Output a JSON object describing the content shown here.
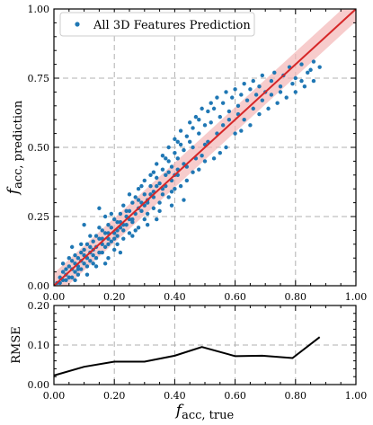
{
  "chart_data": [
    {
      "type": "scatter",
      "xlabel": "",
      "ylabel": "f_acc, prediction",
      "ylabel_main": "f",
      "ylabel_sub": "acc, prediction",
      "xlim": [
        0,
        1
      ],
      "ylim": [
        0,
        1
      ],
      "x_ticks": [
        "0.00",
        "0.20",
        "0.40",
        "0.60",
        "0.80",
        "1.00"
      ],
      "y_ticks": [
        "0.00",
        "0.25",
        "0.50",
        "0.75",
        "1.00"
      ],
      "grid": true,
      "legend": {
        "position": "top-left",
        "entries": [
          "All 3D Features Prediction"
        ]
      },
      "colors": {
        "points": "#1f77b4",
        "identity_line": "#d62728",
        "band": "#f4b6b6"
      },
      "identity_line": {
        "x": [
          0,
          1
        ],
        "y": [
          0,
          1
        ]
      },
      "band_halfwidth": 0.045,
      "series": [
        {
          "name": "All 3D Features Prediction",
          "points": [
            [
              0.01,
              0.01
            ],
            [
              0.02,
              0.03
            ],
            [
              0.03,
              0.02
            ],
            [
              0.03,
              0.05
            ],
            [
              0.04,
              0.04
            ],
            [
              0.05,
              0.07
            ],
            [
              0.05,
              0.03
            ],
            [
              0.06,
              0.06
            ],
            [
              0.06,
              0.09
            ],
            [
              0.07,
              0.05
            ],
            [
              0.07,
              0.08
            ],
            [
              0.08,
              0.1
            ],
            [
              0.08,
              0.06
            ],
            [
              0.09,
              0.12
            ],
            [
              0.09,
              0.09
            ],
            [
              0.1,
              0.08
            ],
            [
              0.1,
              0.13
            ],
            [
              0.11,
              0.1
            ],
            [
              0.11,
              0.15
            ],
            [
              0.12,
              0.12
            ],
            [
              0.12,
              0.09
            ],
            [
              0.13,
              0.16
            ],
            [
              0.13,
              0.11
            ],
            [
              0.14,
              0.14
            ],
            [
              0.14,
              0.18
            ],
            [
              0.15,
              0.12
            ],
            [
              0.15,
              0.17
            ],
            [
              0.16,
              0.15
            ],
            [
              0.16,
              0.2
            ],
            [
              0.17,
              0.14
            ],
            [
              0.17,
              0.19
            ],
            [
              0.18,
              0.17
            ],
            [
              0.18,
              0.22
            ],
            [
              0.19,
              0.16
            ],
            [
              0.19,
              0.21
            ],
            [
              0.2,
              0.19
            ],
            [
              0.2,
              0.24
            ],
            [
              0.21,
              0.18
            ],
            [
              0.21,
              0.23
            ],
            [
              0.22,
              0.21
            ],
            [
              0.22,
              0.26
            ],
            [
              0.23,
              0.2
            ],
            [
              0.24,
              0.25
            ],
            [
              0.24,
              0.22
            ],
            [
              0.25,
              0.27
            ],
            [
              0.25,
              0.24
            ],
            [
              0.26,
              0.3
            ],
            [
              0.27,
              0.26
            ],
            [
              0.27,
              0.32
            ],
            [
              0.28,
              0.28
            ],
            [
              0.28,
              0.35
            ],
            [
              0.29,
              0.3
            ],
            [
              0.3,
              0.33
            ],
            [
              0.3,
              0.38
            ],
            [
              0.31,
              0.31
            ],
            [
              0.32,
              0.36
            ],
            [
              0.32,
              0.4
            ],
            [
              0.33,
              0.34
            ],
            [
              0.34,
              0.39
            ],
            [
              0.34,
              0.44
            ],
            [
              0.35,
              0.37
            ],
            [
              0.36,
              0.42
            ],
            [
              0.36,
              0.47
            ],
            [
              0.37,
              0.4
            ],
            [
              0.38,
              0.45
            ],
            [
              0.38,
              0.5
            ],
            [
              0.39,
              0.43
            ],
            [
              0.4,
              0.48
            ],
            [
              0.4,
              0.53
            ],
            [
              0.41,
              0.46
            ],
            [
              0.42,
              0.51
            ],
            [
              0.42,
              0.56
            ],
            [
              0.43,
              0.49
            ],
            [
              0.44,
              0.54
            ],
            [
              0.45,
              0.59
            ],
            [
              0.45,
              0.52
            ],
            [
              0.46,
              0.57
            ],
            [
              0.47,
              0.61
            ],
            [
              0.48,
              0.55
            ],
            [
              0.48,
              0.6
            ],
            [
              0.49,
              0.64
            ],
            [
              0.5,
              0.58
            ],
            [
              0.51,
              0.63
            ],
            [
              0.52,
              0.66
            ],
            [
              0.52,
              0.59
            ],
            [
              0.53,
              0.64
            ],
            [
              0.54,
              0.68
            ],
            [
              0.55,
              0.61
            ],
            [
              0.56,
              0.66
            ],
            [
              0.57,
              0.7
            ],
            [
              0.58,
              0.63
            ],
            [
              0.59,
              0.68
            ],
            [
              0.6,
              0.71
            ],
            [
              0.61,
              0.65
            ],
            [
              0.62,
              0.69
            ],
            [
              0.63,
              0.73
            ],
            [
              0.64,
              0.67
            ],
            [
              0.65,
              0.71
            ],
            [
              0.66,
              0.74
            ],
            [
              0.67,
              0.69
            ],
            [
              0.68,
              0.72
            ],
            [
              0.69,
              0.76
            ],
            [
              0.7,
              0.7
            ],
            [
              0.72,
              0.74
            ],
            [
              0.73,
              0.77
            ],
            [
              0.75,
              0.72
            ],
            [
              0.76,
              0.76
            ],
            [
              0.78,
              0.79
            ],
            [
              0.8,
              0.75
            ],
            [
              0.82,
              0.8
            ],
            [
              0.84,
              0.77
            ],
            [
              0.86,
              0.81
            ],
            [
              0.88,
              0.79
            ],
            [
              0.1,
              0.22
            ],
            [
              0.15,
              0.28
            ],
            [
              0.18,
              0.1
            ],
            [
              0.22,
              0.12
            ],
            [
              0.26,
              0.18
            ],
            [
              0.3,
              0.24
            ],
            [
              0.33,
              0.28
            ],
            [
              0.35,
              0.3
            ],
            [
              0.38,
              0.32
            ],
            [
              0.4,
              0.35
            ],
            [
              0.42,
              0.36
            ],
            [
              0.44,
              0.38
            ],
            [
              0.46,
              0.41
            ],
            [
              0.48,
              0.42
            ],
            [
              0.5,
              0.45
            ],
            [
              0.53,
              0.46
            ],
            [
              0.55,
              0.48
            ],
            [
              0.57,
              0.5
            ],
            [
              0.6,
              0.55
            ],
            [
              0.62,
              0.56
            ],
            [
              0.65,
              0.58
            ],
            [
              0.68,
              0.62
            ],
            [
              0.71,
              0.64
            ],
            [
              0.74,
              0.66
            ],
            [
              0.77,
              0.68
            ],
            [
              0.8,
              0.7
            ],
            [
              0.83,
              0.72
            ],
            [
              0.86,
              0.74
            ],
            [
              0.06,
              0.14
            ],
            [
              0.08,
              0.04
            ],
            [
              0.12,
              0.18
            ],
            [
              0.14,
              0.07
            ],
            [
              0.17,
              0.25
            ],
            [
              0.2,
              0.13
            ],
            [
              0.23,
              0.29
            ],
            [
              0.25,
              0.19
            ],
            [
              0.28,
              0.21
            ],
            [
              0.31,
              0.26
            ],
            [
              0.34,
              0.24
            ],
            [
              0.37,
              0.36
            ],
            [
              0.39,
              0.29
            ],
            [
              0.41,
              0.4
            ],
            [
              0.43,
              0.31
            ],
            [
              0.46,
              0.5
            ],
            [
              0.49,
              0.47
            ],
            [
              0.51,
              0.52
            ],
            [
              0.54,
              0.55
            ],
            [
              0.56,
              0.58
            ],
            [
              0.58,
              0.6
            ],
            [
              0.61,
              0.62
            ],
            [
              0.63,
              0.6
            ],
            [
              0.66,
              0.64
            ],
            [
              0.69,
              0.67
            ],
            [
              0.72,
              0.69
            ],
            [
              0.75,
              0.7
            ],
            [
              0.79,
              0.73
            ],
            [
              0.82,
              0.74
            ],
            [
              0.85,
              0.78
            ],
            [
              0.04,
              0.02
            ],
            [
              0.05,
              0.1
            ],
            [
              0.07,
              0.11
            ],
            [
              0.09,
              0.06
            ],
            [
              0.11,
              0.07
            ],
            [
              0.13,
              0.13
            ],
            [
              0.16,
              0.12
            ],
            [
              0.18,
              0.15
            ],
            [
              0.21,
              0.2
            ],
            [
              0.23,
              0.22
            ],
            [
              0.26,
              0.23
            ],
            [
              0.29,
              0.27
            ],
            [
              0.31,
              0.3
            ],
            [
              0.33,
              0.32
            ],
            [
              0.36,
              0.35
            ],
            [
              0.39,
              0.38
            ],
            [
              0.41,
              0.42
            ],
            [
              0.44,
              0.43
            ],
            [
              0.47,
              0.46
            ],
            [
              0.5,
              0.51
            ],
            [
              0.02,
              0.01
            ],
            [
              0.04,
              0.06
            ],
            [
              0.06,
              0.03
            ],
            [
              0.08,
              0.07
            ],
            [
              0.1,
              0.11
            ],
            [
              0.12,
              0.14
            ],
            [
              0.14,
              0.1
            ],
            [
              0.16,
              0.17
            ],
            [
              0.18,
              0.19
            ],
            [
              0.2,
              0.17
            ],
            [
              0.22,
              0.23
            ],
            [
              0.24,
              0.27
            ],
            [
              0.26,
              0.24
            ],
            [
              0.28,
              0.31
            ],
            [
              0.3,
              0.29
            ],
            [
              0.32,
              0.33
            ],
            [
              0.34,
              0.36
            ],
            [
              0.36,
              0.33
            ],
            [
              0.38,
              0.41
            ],
            [
              0.4,
              0.4
            ],
            [
              0.03,
              0.08
            ],
            [
              0.07,
              0.02
            ],
            [
              0.09,
              0.15
            ],
            [
              0.11,
              0.04
            ],
            [
              0.13,
              0.08
            ],
            [
              0.15,
              0.21
            ],
            [
              0.17,
              0.08
            ],
            [
              0.19,
              0.26
            ],
            [
              0.21,
              0.15
            ],
            [
              0.23,
              0.17
            ],
            [
              0.25,
              0.33
            ],
            [
              0.27,
              0.2
            ],
            [
              0.29,
              0.36
            ],
            [
              0.31,
              0.22
            ],
            [
              0.33,
              0.41
            ],
            [
              0.35,
              0.27
            ],
            [
              0.37,
              0.46
            ],
            [
              0.39,
              0.34
            ],
            [
              0.41,
              0.52
            ],
            [
              0.43,
              0.44
            ]
          ]
        }
      ]
    },
    {
      "type": "line",
      "xlabel": "f_acc, true",
      "xlabel_main": "f",
      "xlabel_sub": "acc, true",
      "ylabel": "RMSE",
      "xlim": [
        0,
        1
      ],
      "ylim": [
        0,
        0.2
      ],
      "x_ticks": [
        "0.00",
        "0.20",
        "0.40",
        "0.60",
        "0.80",
        "1.00"
      ],
      "y_ticks": [
        "0.00",
        "0.10",
        "0.20"
      ],
      "grid": true,
      "colors": {
        "line": "#000000"
      },
      "series": [
        {
          "x": [
            0.0,
            0.1,
            0.2,
            0.3,
            0.4,
            0.49,
            0.6,
            0.69,
            0.79,
            0.88
          ],
          "y": [
            0.023,
            0.045,
            0.058,
            0.058,
            0.073,
            0.095,
            0.072,
            0.073,
            0.067,
            0.12
          ]
        }
      ]
    }
  ]
}
